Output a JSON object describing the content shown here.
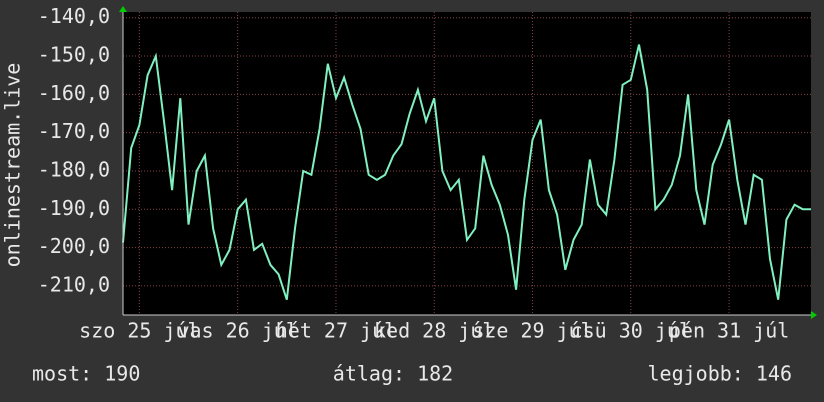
{
  "chart_data": {
    "type": "line",
    "ylabel": "onlinestream.live",
    "xlim": [
      0,
      168
    ],
    "xticks": [
      {
        "value": 4,
        "label": "szo 25 júl"
      },
      {
        "value": 28,
        "label": "vas 26 júl"
      },
      {
        "value": 52,
        "label": "hét 27 júl"
      },
      {
        "value": 76,
        "label": "ked 28 júl"
      },
      {
        "value": 100,
        "label": "sze 29 júl"
      },
      {
        "value": 124,
        "label": "csü 30 júl"
      },
      {
        "value": 148,
        "label": "pén 31 júl"
      }
    ],
    "ylim": [
      -217.6,
      -138.5
    ],
    "yticks": [
      {
        "value": -140,
        "label": "-140,0"
      },
      {
        "value": -150,
        "label": "-150,0"
      },
      {
        "value": -160,
        "label": "-160,0"
      },
      {
        "value": -170,
        "label": "-170,0"
      },
      {
        "value": -180,
        "label": "-180,0"
      },
      {
        "value": -190,
        "label": "-190,0"
      },
      {
        "value": -200,
        "label": "-200,0"
      },
      {
        "value": -210,
        "label": "-210,0"
      }
    ],
    "grid": true,
    "x": [
      0,
      2,
      4,
      6,
      8,
      10,
      12,
      14,
      16,
      18,
      20,
      22,
      24,
      26,
      28,
      30,
      32,
      34,
      36,
      38,
      40,
      42,
      44,
      46,
      48,
      50,
      52,
      54,
      56,
      58,
      60,
      62,
      64,
      66,
      68,
      70,
      72,
      74,
      76,
      78,
      80,
      82,
      84,
      86,
      88,
      90,
      92,
      94,
      96,
      98,
      100,
      102,
      104,
      106,
      108,
      110,
      112,
      114,
      116,
      118,
      120,
      122,
      124,
      126,
      128,
      130,
      132,
      134,
      136,
      138,
      140,
      142,
      144,
      146,
      148,
      150,
      152,
      154,
      156,
      158,
      160,
      162,
      164,
      166,
      168
    ],
    "series": [
      {
        "color": "#80f0c0",
        "values": [
          -198.7,
          -174,
          -168,
          -155,
          -150,
          -167,
          -185,
          -161,
          -194,
          -180,
          -176,
          -195,
          -204.5,
          -200.6,
          -190,
          -187.5,
          -200.6,
          -199,
          -204.5,
          -207,
          -213.6,
          -195,
          -180,
          -181,
          -169,
          -152,
          -161,
          -155.6,
          -162.7,
          -169,
          -181,
          -182.3,
          -181,
          -176,
          -173,
          -165,
          -158.8,
          -167,
          -161,
          -180,
          -185,
          -182.3,
          -198,
          -195,
          -176,
          -183.6,
          -188.8,
          -196.7,
          -211,
          -187.5,
          -171.9,
          -166.6,
          -185,
          -191.4,
          -205.8,
          -198,
          -194,
          -177,
          -188.8,
          -191.4,
          -177,
          -157.5,
          -156.2,
          -147,
          -158.8,
          -190,
          -187.5,
          -183.6,
          -176,
          -160,
          -185,
          -194,
          -178.4,
          -173.2,
          -166.6,
          -182.3,
          -194,
          -181,
          -182.3,
          -203,
          -213.6,
          -192.7,
          -188.8,
          -190,
          -190
        ]
      }
    ],
    "footer": [
      "most: 190",
      "átlag: 182",
      "legjobb: 146"
    ]
  }
}
